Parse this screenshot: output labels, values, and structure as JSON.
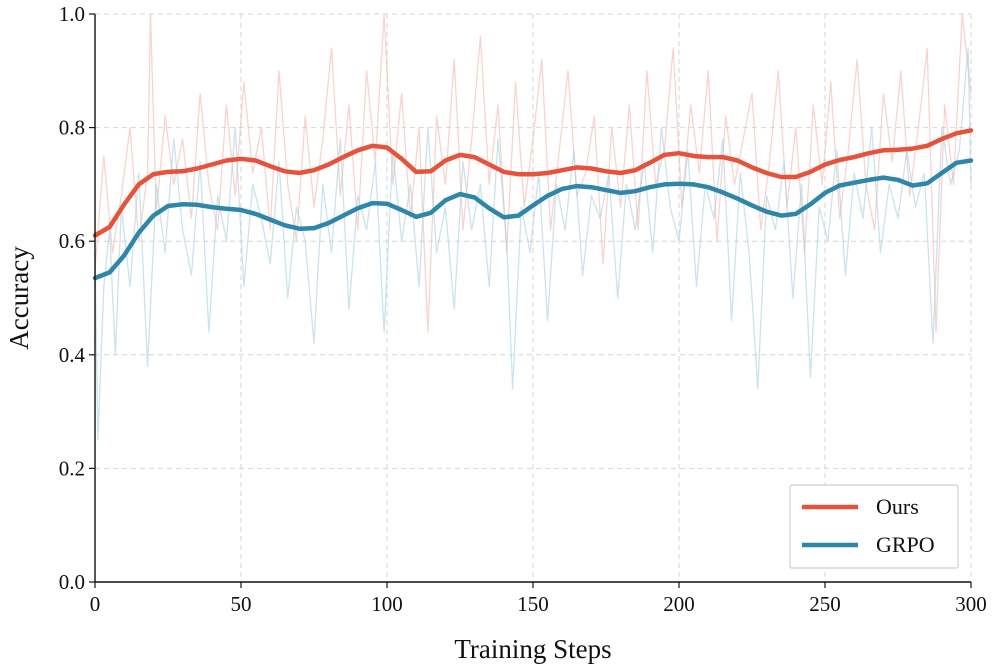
{
  "chart_data": {
    "type": "line",
    "title": "",
    "xlabel": "Training Steps",
    "ylabel": "Accuracy",
    "xlim": [
      0,
      300
    ],
    "ylim": [
      0.0,
      1.0
    ],
    "xticks": [
      0,
      50,
      100,
      150,
      200,
      250,
      300
    ],
    "xtick_labels": [
      "0",
      "50",
      "100",
      "150",
      "200",
      "250",
      "300"
    ],
    "yticks": [
      0.0,
      0.2,
      0.4,
      0.6,
      0.8,
      1.0
    ],
    "ytick_labels": [
      "0.0",
      "0.2",
      "0.4",
      "0.6",
      "0.8",
      "1.0"
    ],
    "grid": true,
    "legend_position": "bottom-right",
    "series": [
      {
        "name": "Ours",
        "color": "#e5533c",
        "raw_color": "#f4b8ae",
        "smoothed": {
          "x": [
            0,
            5,
            10,
            15,
            20,
            25,
            30,
            35,
            40,
            45,
            50,
            55,
            60,
            65,
            70,
            75,
            80,
            85,
            90,
            95,
            100,
            105,
            110,
            115,
            120,
            125,
            130,
            135,
            140,
            145,
            150,
            155,
            160,
            165,
            170,
            175,
            180,
            185,
            190,
            195,
            200,
            205,
            210,
            215,
            220,
            225,
            230,
            235,
            240,
            245,
            250,
            255,
            260,
            265,
            270,
            275,
            280,
            285,
            290,
            295,
            300
          ],
          "y": [
            0.61,
            0.625,
            0.665,
            0.7,
            0.718,
            0.722,
            0.723,
            0.728,
            0.735,
            0.742,
            0.745,
            0.742,
            0.732,
            0.723,
            0.72,
            0.725,
            0.735,
            0.748,
            0.76,
            0.768,
            0.765,
            0.745,
            0.722,
            0.723,
            0.742,
            0.752,
            0.748,
            0.735,
            0.722,
            0.718,
            0.718,
            0.72,
            0.725,
            0.73,
            0.728,
            0.723,
            0.72,
            0.725,
            0.738,
            0.752,
            0.755,
            0.75,
            0.748,
            0.748,
            0.742,
            0.73,
            0.72,
            0.713,
            0.713,
            0.722,
            0.735,
            0.743,
            0.748,
            0.755,
            0.76,
            0.761,
            0.763,
            0.768,
            0.78,
            0.79,
            0.795
          ]
        },
        "raw": {
          "x": [
            0,
            3,
            6,
            9,
            12,
            15,
            18,
            19,
            21,
            24,
            27,
            30,
            33,
            36,
            39,
            42,
            45,
            48,
            51,
            54,
            57,
            60,
            63,
            66,
            69,
            72,
            75,
            78,
            81,
            84,
            87,
            90,
            93,
            96,
            99,
            102,
            105,
            108,
            111,
            114,
            117,
            120,
            123,
            126,
            129,
            132,
            135,
            138,
            141,
            144,
            147,
            150,
            153,
            156,
            159,
            162,
            165,
            168,
            171,
            174,
            177,
            180,
            183,
            186,
            189,
            192,
            195,
            198,
            201,
            204,
            207,
            210,
            213,
            216,
            219,
            222,
            225,
            228,
            231,
            234,
            237,
            240,
            243,
            246,
            249,
            252,
            255,
            258,
            261,
            264,
            267,
            270,
            273,
            276,
            279,
            282,
            285,
            288,
            291,
            294,
            297,
            300
          ],
          "y": [
            0.55,
            0.75,
            0.58,
            0.68,
            0.8,
            0.6,
            0.72,
            1.0,
            0.65,
            0.82,
            0.7,
            0.78,
            0.64,
            0.86,
            0.7,
            0.62,
            0.84,
            0.68,
            0.88,
            0.72,
            0.8,
            0.62,
            0.9,
            0.7,
            0.6,
            0.82,
            0.66,
            0.78,
            0.94,
            0.68,
            0.84,
            0.62,
            0.9,
            0.74,
            1.0,
            0.7,
            0.86,
            0.64,
            0.8,
            0.44,
            0.82,
            0.7,
            0.92,
            0.62,
            0.78,
            0.96,
            0.7,
            0.84,
            0.58,
            0.88,
            0.66,
            0.78,
            0.92,
            0.62,
            0.76,
            0.9,
            0.68,
            0.72,
            0.82,
            0.56,
            0.8,
            0.66,
            0.84,
            0.62,
            0.9,
            0.7,
            0.76,
            0.94,
            0.66,
            0.84,
            0.72,
            0.9,
            0.6,
            0.82,
            0.7,
            0.78,
            0.86,
            0.62,
            0.74,
            0.9,
            0.66,
            0.8,
            0.58,
            0.84,
            0.7,
            0.88,
            0.64,
            0.76,
            0.92,
            0.7,
            0.62,
            0.86,
            0.74,
            0.9,
            0.68,
            0.8,
            0.94,
            0.44,
            0.84,
            0.7,
            1.0,
            0.86
          ]
        }
      },
      {
        "name": "GRPO",
        "color": "#2e86a8",
        "raw_color": "#a6d1e2",
        "smoothed": {
          "x": [
            0,
            5,
            10,
            15,
            20,
            25,
            30,
            35,
            40,
            45,
            50,
            55,
            60,
            65,
            70,
            75,
            80,
            85,
            90,
            95,
            100,
            105,
            110,
            115,
            120,
            125,
            130,
            135,
            140,
            145,
            150,
            155,
            160,
            165,
            170,
            175,
            180,
            185,
            190,
            195,
            200,
            205,
            210,
            215,
            220,
            225,
            230,
            235,
            240,
            245,
            250,
            255,
            260,
            265,
            270,
            275,
            280,
            285,
            290,
            295,
            300
          ],
          "y": [
            0.535,
            0.545,
            0.575,
            0.615,
            0.645,
            0.662,
            0.665,
            0.664,
            0.66,
            0.657,
            0.655,
            0.648,
            0.638,
            0.628,
            0.622,
            0.623,
            0.632,
            0.645,
            0.658,
            0.667,
            0.666,
            0.655,
            0.643,
            0.65,
            0.672,
            0.683,
            0.677,
            0.658,
            0.642,
            0.645,
            0.663,
            0.68,
            0.692,
            0.697,
            0.695,
            0.69,
            0.685,
            0.688,
            0.695,
            0.7,
            0.701,
            0.7,
            0.695,
            0.686,
            0.675,
            0.663,
            0.652,
            0.645,
            0.648,
            0.665,
            0.685,
            0.698,
            0.703,
            0.708,
            0.712,
            0.708,
            0.698,
            0.702,
            0.72,
            0.738,
            0.742
          ]
        },
        "raw": {
          "x": [
            0,
            1,
            3,
            5,
            7,
            9,
            12,
            15,
            18,
            21,
            24,
            27,
            30,
            33,
            36,
            39,
            42,
            45,
            48,
            51,
            54,
            57,
            60,
            63,
            66,
            69,
            72,
            75,
            78,
            81,
            84,
            87,
            90,
            93,
            96,
            99,
            102,
            105,
            108,
            111,
            114,
            117,
            120,
            123,
            126,
            129,
            132,
            135,
            138,
            141,
            143,
            146,
            149,
            152,
            155,
            158,
            161,
            164,
            167,
            170,
            173,
            176,
            179,
            182,
            185,
            188,
            191,
            194,
            197,
            200,
            203,
            206,
            209,
            212,
            215,
            218,
            221,
            224,
            227,
            230,
            233,
            236,
            239,
            242,
            245,
            248,
            251,
            254,
            257,
            260,
            263,
            266,
            269,
            272,
            275,
            278,
            281,
            284,
            287,
            290,
            293,
            296,
            299,
            300
          ],
          "y": [
            0.58,
            0.25,
            0.52,
            0.62,
            0.4,
            0.66,
            0.52,
            0.72,
            0.38,
            0.7,
            0.58,
            0.78,
            0.62,
            0.54,
            0.74,
            0.44,
            0.68,
            0.6,
            0.8,
            0.52,
            0.7,
            0.64,
            0.56,
            0.74,
            0.5,
            0.66,
            0.6,
            0.42,
            0.7,
            0.58,
            0.78,
            0.48,
            0.68,
            0.62,
            0.74,
            0.44,
            0.76,
            0.6,
            0.7,
            0.52,
            0.8,
            0.58,
            0.66,
            0.48,
            0.74,
            0.62,
            0.7,
            0.52,
            0.78,
            0.6,
            0.34,
            0.66,
            0.58,
            0.72,
            0.46,
            0.7,
            0.62,
            0.76,
            0.54,
            0.68,
            0.64,
            0.72,
            0.5,
            0.7,
            0.62,
            0.74,
            0.58,
            0.8,
            0.66,
            0.6,
            0.76,
            0.52,
            0.7,
            0.64,
            0.78,
            0.46,
            0.72,
            0.58,
            0.34,
            0.68,
            0.62,
            0.74,
            0.5,
            0.7,
            0.36,
            0.66,
            0.6,
            0.76,
            0.54,
            0.72,
            0.64,
            0.8,
            0.58,
            0.7,
            0.64,
            0.76,
            0.66,
            0.72,
            0.42,
            0.8,
            0.7,
            0.76,
            0.94,
            0.7
          ]
        }
      }
    ]
  }
}
